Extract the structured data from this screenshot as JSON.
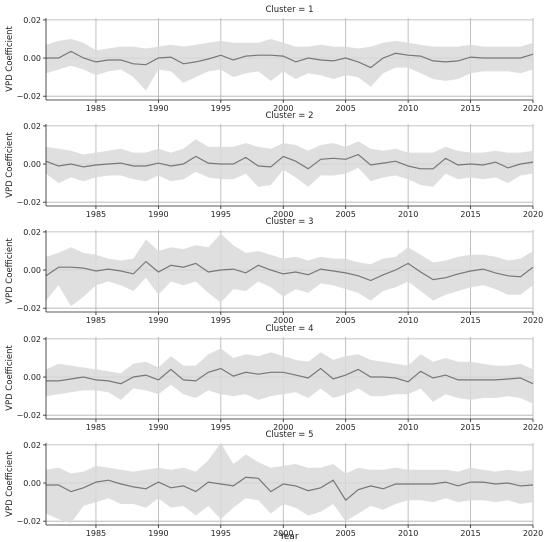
{
  "chart_data": [
    {
      "type": "line",
      "title": "Cluster = 1",
      "ylabel": "VPD Coefficient",
      "xlabel": "",
      "xlim": [
        1981,
        2020
      ],
      "ylim": [
        -0.022,
        0.021
      ],
      "xticks": [
        "1985",
        "1990",
        "1995",
        "2000",
        "2005",
        "2010",
        "2015",
        "2020"
      ],
      "yticks": [
        "0.02",
        "0.00",
        "−0.02"
      ],
      "grid": true,
      "x": [
        1981,
        1982,
        1983,
        1984,
        1985,
        1986,
        1987,
        1988,
        1989,
        1990,
        1991,
        1992,
        1993,
        1994,
        1995,
        1996,
        1997,
        1998,
        1999,
        2000,
        2001,
        2002,
        2003,
        2004,
        2005,
        2006,
        2007,
        2008,
        2009,
        2010,
        2011,
        2012,
        2013,
        2014,
        2015,
        2016,
        2017,
        2018,
        2019,
        2020
      ],
      "series": [
        {
          "values": [
            0.0,
            0.0,
            0.0035,
            0.0,
            -0.002,
            -0.001,
            -0.001,
            -0.003,
            -0.0035,
            0.0,
            0.0005,
            -0.003,
            -0.002,
            -0.0005,
            0.0015,
            -0.001,
            0.001,
            0.0015,
            0.0015,
            0.001,
            -0.002,
            0.0,
            -0.001,
            -0.0015,
            0.0,
            -0.002,
            -0.005,
            0.0,
            0.0025,
            0.0015,
            0.001,
            -0.0015,
            -0.002,
            -0.0015,
            0.0005,
            0.0,
            0.0,
            0.0,
            0.0,
            0.002
          ]
        },
        {
          "values_upper": [
            0.007,
            0.009,
            0.01,
            0.008,
            0.004,
            0.005,
            0.006,
            0.006,
            0.005,
            0.006,
            0.007,
            0.006,
            0.007,
            0.008,
            0.009,
            0.008,
            0.008,
            0.008,
            0.01,
            0.008,
            0.006,
            0.006,
            0.007,
            0.006,
            0.006,
            0.005,
            0.006,
            0.008,
            0.009,
            0.008,
            0.007,
            0.006,
            0.006,
            0.006,
            0.007,
            0.006,
            0.006,
            0.006,
            0.006,
            0.008
          ],
          "values_lower": [
            -0.008,
            -0.006,
            -0.004,
            -0.006,
            -0.009,
            -0.007,
            -0.006,
            -0.01,
            -0.017,
            -0.006,
            -0.007,
            -0.013,
            -0.01,
            -0.007,
            -0.006,
            -0.01,
            -0.008,
            -0.007,
            -0.012,
            -0.007,
            -0.011,
            -0.008,
            -0.009,
            -0.011,
            -0.009,
            -0.01,
            -0.015,
            -0.008,
            -0.005,
            -0.005,
            -0.008,
            -0.011,
            -0.012,
            -0.011,
            -0.008,
            -0.007,
            -0.007,
            -0.007,
            -0.008,
            -0.006
          ]
        }
      ]
    },
    {
      "type": "line",
      "title": "Cluster = 2",
      "ylabel": "VPD Coefficient",
      "xlabel": "",
      "xlim": [
        1981,
        2020
      ],
      "ylim": [
        -0.022,
        0.021
      ],
      "xticks": [
        "1985",
        "1990",
        "1995",
        "2000",
        "2005",
        "2010",
        "2015",
        "2020"
      ],
      "yticks": [
        "0.02",
        "0.00",
        "−0.02"
      ],
      "grid": true,
      "x": [
        1981,
        1982,
        1983,
        1984,
        1985,
        1986,
        1987,
        1988,
        1989,
        1990,
        1991,
        1992,
        1993,
        1994,
        1995,
        1996,
        1997,
        1998,
        1999,
        2000,
        2001,
        2002,
        2003,
        2004,
        2005,
        2006,
        2007,
        2008,
        2009,
        2010,
        2011,
        2012,
        2013,
        2014,
        2015,
        2016,
        2017,
        2018,
        2019,
        2020
      ],
      "series": [
        {
          "values": [
            0.0015,
            -0.001,
            0.0,
            -0.0015,
            -0.0005,
            0.0,
            0.0005,
            -0.001,
            -0.001,
            0.0005,
            -0.001,
            0.0,
            0.004,
            0.0005,
            0.0,
            0.0,
            0.0035,
            -0.001,
            -0.0015,
            0.004,
            0.0015,
            -0.0025,
            0.0025,
            0.003,
            0.0025,
            0.005,
            -0.0005,
            0.0005,
            0.0015,
            -0.001,
            -0.0025,
            -0.0025,
            0.003,
            -0.0005,
            0.0,
            -0.0005,
            0.001,
            -0.002,
            0.0,
            0.001
          ]
        },
        {
          "values_upper": [
            0.009,
            0.008,
            0.007,
            0.005,
            0.006,
            0.007,
            0.008,
            0.006,
            0.006,
            0.008,
            0.006,
            0.008,
            0.013,
            0.009,
            0.009,
            0.009,
            0.011,
            0.009,
            0.008,
            0.011,
            0.01,
            0.007,
            0.01,
            0.011,
            0.009,
            0.012,
            0.008,
            0.007,
            0.008,
            0.006,
            0.006,
            0.006,
            0.009,
            0.007,
            0.006,
            0.006,
            0.007,
            0.006,
            0.006,
            0.007
          ],
          "values_lower": [
            -0.005,
            -0.01,
            -0.007,
            -0.009,
            -0.007,
            -0.006,
            -0.006,
            -0.008,
            -0.009,
            -0.006,
            -0.009,
            -0.008,
            -0.004,
            -0.007,
            -0.008,
            -0.008,
            -0.005,
            -0.012,
            -0.011,
            -0.003,
            -0.007,
            -0.012,
            -0.006,
            -0.006,
            -0.005,
            -0.002,
            -0.009,
            -0.007,
            -0.006,
            -0.008,
            -0.011,
            -0.012,
            -0.005,
            -0.008,
            -0.007,
            -0.008,
            -0.007,
            -0.01,
            -0.006,
            -0.005
          ]
        }
      ]
    },
    {
      "type": "line",
      "title": "Cluster = 3",
      "ylabel": "VPD Coefficient",
      "xlabel": "",
      "xlim": [
        1981,
        2020
      ],
      "ylim": [
        -0.022,
        0.021
      ],
      "xticks": [
        "1985",
        "1990",
        "1995",
        "2000",
        "2005",
        "2010",
        "2015",
        "2020"
      ],
      "yticks": [
        "0.02",
        "0.00",
        "−0.02"
      ],
      "grid": true,
      "x": [
        1981,
        1982,
        1983,
        1984,
        1985,
        1986,
        1987,
        1988,
        1989,
        1990,
        1991,
        1992,
        1993,
        1994,
        1995,
        1996,
        1997,
        1998,
        1999,
        2000,
        2001,
        2002,
        2003,
        2004,
        2005,
        2006,
        2007,
        2008,
        2009,
        2010,
        2011,
        2012,
        2013,
        2014,
        2015,
        2016,
        2017,
        2018,
        2019,
        2020
      ],
      "series": [
        {
          "values": [
            -0.003,
            0.0015,
            0.0015,
            0.001,
            -0.0005,
            0.0005,
            -0.0005,
            -0.002,
            0.0045,
            -0.001,
            0.0025,
            0.0015,
            0.0035,
            -0.001,
            0.0,
            0.0005,
            -0.0015,
            0.0025,
            0.0,
            -0.002,
            -0.001,
            -0.0025,
            0.0005,
            -0.0005,
            -0.0015,
            -0.003,
            -0.0055,
            -0.0025,
            0.0,
            0.0035,
            -0.001,
            -0.005,
            -0.004,
            -0.002,
            -0.0005,
            0.0005,
            -0.0015,
            -0.003,
            -0.0035,
            0.0015
          ]
        },
        {
          "values_upper": [
            0.007,
            0.009,
            0.012,
            0.009,
            0.008,
            0.006,
            0.005,
            0.006,
            0.016,
            0.01,
            0.012,
            0.011,
            0.013,
            0.012,
            0.019,
            0.013,
            0.009,
            0.01,
            0.008,
            0.006,
            0.007,
            0.005,
            0.007,
            0.006,
            0.006,
            0.004,
            0.003,
            0.006,
            0.007,
            0.012,
            0.008,
            0.004,
            0.005,
            0.007,
            0.008,
            0.008,
            0.007,
            0.005,
            0.006,
            0.01
          ],
          "values_lower": [
            -0.016,
            -0.008,
            -0.019,
            -0.014,
            -0.008,
            -0.006,
            -0.008,
            -0.011,
            -0.004,
            -0.013,
            -0.006,
            -0.008,
            -0.006,
            -0.012,
            -0.017,
            -0.01,
            -0.011,
            -0.006,
            -0.009,
            -0.014,
            -0.01,
            -0.012,
            -0.007,
            -0.008,
            -0.01,
            -0.012,
            -0.016,
            -0.011,
            -0.009,
            -0.006,
            -0.011,
            -0.016,
            -0.013,
            -0.011,
            -0.009,
            -0.008,
            -0.01,
            -0.013,
            -0.013,
            -0.008
          ]
        }
      ]
    },
    {
      "type": "line",
      "title": "Cluster = 4",
      "ylabel": "VPD Coefficient",
      "xlabel": "",
      "xlim": [
        1981,
        2020
      ],
      "ylim": [
        -0.022,
        0.021
      ],
      "xticks": [
        "1985",
        "1990",
        "1995",
        "2000",
        "2005",
        "2010",
        "2015",
        "2020"
      ],
      "yticks": [
        "0.02",
        "0.00",
        "−0.02"
      ],
      "grid": true,
      "x": [
        1981,
        1982,
        1983,
        1984,
        1985,
        1986,
        1987,
        1988,
        1989,
        1990,
        1991,
        1992,
        1993,
        1994,
        1995,
        1996,
        1997,
        1998,
        1999,
        2000,
        2001,
        2002,
        2003,
        2004,
        2005,
        2006,
        2007,
        2008,
        2009,
        2010,
        2011,
        2012,
        2013,
        2014,
        2015,
        2016,
        2017,
        2018,
        2019,
        2020
      ],
      "series": [
        {
          "values": [
            -0.002,
            -0.002,
            -0.001,
            0.0,
            -0.0015,
            -0.002,
            -0.0035,
            0.0,
            0.001,
            -0.0015,
            0.004,
            -0.0015,
            -0.002,
            0.0025,
            0.0045,
            0.0005,
            0.0025,
            0.0015,
            0.0025,
            0.0025,
            0.001,
            -0.0005,
            0.0045,
            -0.001,
            0.001,
            0.004,
            0.0,
            0.0,
            -0.0005,
            -0.0025,
            0.003,
            -0.0005,
            0.001,
            -0.0015,
            -0.0015,
            -0.0015,
            -0.0015,
            -0.001,
            -0.0005,
            -0.0035
          ]
        },
        {
          "values_upper": [
            0.004,
            0.007,
            0.006,
            0.005,
            0.004,
            0.003,
            0.002,
            0.007,
            0.008,
            0.005,
            0.011,
            0.006,
            0.006,
            0.012,
            0.015,
            0.01,
            0.012,
            0.011,
            0.013,
            0.011,
            0.009,
            0.008,
            0.013,
            0.009,
            0.011,
            0.012,
            0.009,
            0.008,
            0.007,
            0.006,
            0.012,
            0.008,
            0.01,
            0.008,
            0.008,
            0.007,
            0.006,
            0.006,
            0.007,
            0.004
          ],
          "values_lower": [
            -0.01,
            -0.009,
            -0.008,
            -0.007,
            -0.007,
            -0.008,
            -0.012,
            -0.006,
            -0.007,
            -0.009,
            -0.004,
            -0.009,
            -0.011,
            -0.007,
            -0.009,
            -0.01,
            -0.009,
            -0.012,
            -0.01,
            -0.009,
            -0.008,
            -0.011,
            -0.006,
            -0.011,
            -0.009,
            -0.006,
            -0.01,
            -0.01,
            -0.009,
            -0.009,
            -0.006,
            -0.013,
            -0.009,
            -0.011,
            -0.012,
            -0.011,
            -0.011,
            -0.01,
            -0.011,
            -0.014
          ]
        }
      ]
    },
    {
      "type": "line",
      "title": "Cluster = 5",
      "ylabel": "VPD Coefficient",
      "xlabel": "Year",
      "xlim": [
        1981,
        2020
      ],
      "ylim": [
        -0.022,
        0.021
      ],
      "xticks": [
        "1985",
        "1990",
        "1995",
        "2000",
        "2005",
        "2010",
        "2015",
        "2020"
      ],
      "yticks": [
        "0.02",
        "0.00",
        "−0.02"
      ],
      "grid": true,
      "x": [
        1981,
        1982,
        1983,
        1984,
        1985,
        1986,
        1987,
        1988,
        1989,
        1990,
        1991,
        1992,
        1993,
        1994,
        1995,
        1996,
        1997,
        1998,
        1999,
        2000,
        2001,
        2002,
        2003,
        2004,
        2005,
        2006,
        2007,
        2008,
        2009,
        2010,
        2011,
        2012,
        2013,
        2014,
        2015,
        2016,
        2017,
        2018,
        2019,
        2020
      ],
      "series": [
        {
          "values": [
            -0.001,
            -0.001,
            -0.0045,
            -0.0025,
            0.0005,
            0.0015,
            -0.0005,
            -0.002,
            -0.003,
            0.0005,
            -0.0025,
            -0.0015,
            -0.0045,
            0.0005,
            -0.0005,
            -0.0015,
            0.003,
            0.0025,
            -0.0045,
            -0.0005,
            -0.0015,
            -0.004,
            -0.0025,
            0.0015,
            -0.009,
            -0.0035,
            -0.0015,
            -0.003,
            -0.0005,
            -0.0005,
            -0.0005,
            -0.0005,
            0.0005,
            -0.0015,
            0.0005,
            0.0005,
            -0.0005,
            0.0,
            -0.0015,
            -0.001
          ]
        },
        {
          "values_upper": [
            0.007,
            0.008,
            0.005,
            0.006,
            0.009,
            0.008,
            0.007,
            0.006,
            0.007,
            0.008,
            0.007,
            0.008,
            0.006,
            0.012,
            0.021,
            0.01,
            0.015,
            0.011,
            0.008,
            0.009,
            0.01,
            0.008,
            0.008,
            0.01,
            0.005,
            0.008,
            0.007,
            0.007,
            0.008,
            0.007,
            0.007,
            0.007,
            0.007,
            0.006,
            0.008,
            0.007,
            0.006,
            0.007,
            0.006,
            0.007
          ],
          "values_lower": [
            -0.016,
            -0.019,
            -0.021,
            -0.012,
            -0.01,
            -0.008,
            -0.011,
            -0.011,
            -0.013,
            -0.008,
            -0.013,
            -0.012,
            -0.017,
            -0.012,
            -0.019,
            -0.013,
            -0.008,
            -0.009,
            -0.016,
            -0.011,
            -0.013,
            -0.017,
            -0.015,
            -0.011,
            -0.02,
            -0.016,
            -0.012,
            -0.014,
            -0.011,
            -0.009,
            -0.009,
            -0.01,
            -0.008,
            -0.01,
            -0.009,
            -0.009,
            -0.01,
            -0.009,
            -0.011,
            -0.01
          ]
        }
      ]
    }
  ]
}
